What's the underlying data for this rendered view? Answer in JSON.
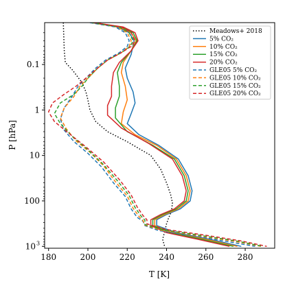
{
  "chart_data": {
    "type": "line",
    "xlabel": "T [K]",
    "ylabel": "P [hPa]",
    "xlim": [
      178,
      295
    ],
    "ylim": [
      1100,
      0.012
    ],
    "y_scale": "log",
    "y_inverted": true,
    "grid": false,
    "legend_position": "top-right",
    "x_ticks": [
      {
        "value": 180,
        "label": "180"
      },
      {
        "value": 200,
        "label": "200"
      },
      {
        "value": 220,
        "label": "220"
      },
      {
        "value": 240,
        "label": "240"
      },
      {
        "value": 260,
        "label": "260"
      },
      {
        "value": 280,
        "label": "280"
      }
    ],
    "y_ticks": [
      {
        "value": 0.1,
        "label": "0.1"
      },
      {
        "value": 1,
        "label": "1"
      },
      {
        "value": 10,
        "label": "10"
      },
      {
        "value": 100,
        "label": "100"
      },
      {
        "value": 1000,
        "label": "10",
        "sup": "3"
      }
    ],
    "series": [
      {
        "name": "Meadows+ 2018",
        "color": "#000000",
        "dash": "1.5,2.5",
        "points": [
          [
            187.5,
            0.012
          ],
          [
            188,
            0.05
          ],
          [
            188.5,
            0.09
          ],
          [
            192,
            0.13
          ],
          [
            197,
            0.25
          ],
          [
            199,
            0.4
          ],
          [
            200,
            0.6
          ],
          [
            201,
            1.0
          ],
          [
            204,
            1.8
          ],
          [
            210,
            3.0
          ],
          [
            220,
            5.0
          ],
          [
            232,
            10
          ],
          [
            237,
            20
          ],
          [
            240,
            40
          ],
          [
            242,
            70
          ],
          [
            243,
            110
          ],
          [
            242.5,
            170
          ],
          [
            241,
            240
          ],
          [
            240,
            320
          ],
          [
            239,
            480
          ],
          [
            238,
            700
          ],
          [
            239,
            1000
          ]
        ]
      },
      {
        "name": "5% CO₂",
        "color": "#1f77b4",
        "dash": "",
        "points": [
          [
            203,
            0.012
          ],
          [
            215,
            0.015
          ],
          [
            221,
            0.02
          ],
          [
            223.5,
            0.03
          ],
          [
            222,
            0.06
          ],
          [
            219,
            0.12
          ],
          [
            220,
            0.2
          ],
          [
            223,
            0.4
          ],
          [
            224,
            0.7
          ],
          [
            222,
            1.2
          ],
          [
            220,
            2.0
          ],
          [
            226,
            3.5
          ],
          [
            236,
            6.0
          ],
          [
            246,
            12
          ],
          [
            251,
            28
          ],
          [
            253,
            60
          ],
          [
            252,
            100
          ],
          [
            247,
            150
          ],
          [
            240,
            200
          ],
          [
            235,
            260
          ],
          [
            235,
            350
          ],
          [
            245,
            500
          ],
          [
            262,
            700
          ],
          [
            278,
            1000
          ]
        ]
      },
      {
        "name": "10% CO₂",
        "color": "#ff7f0e",
        "dash": "",
        "points": [
          [
            203,
            0.012
          ],
          [
            216,
            0.015
          ],
          [
            222,
            0.02
          ],
          [
            224.5,
            0.03
          ],
          [
            222,
            0.05
          ],
          [
            218,
            0.09
          ],
          [
            217,
            0.15
          ],
          [
            219,
            0.3
          ],
          [
            220,
            0.6
          ],
          [
            218,
            1.1
          ],
          [
            217,
            2.0
          ],
          [
            224,
            3.5
          ],
          [
            235,
            6.0
          ],
          [
            245,
            12
          ],
          [
            250,
            28
          ],
          [
            252,
            60
          ],
          [
            251,
            100
          ],
          [
            246,
            150
          ],
          [
            239,
            200
          ],
          [
            234,
            260
          ],
          [
            234,
            350
          ],
          [
            243,
            500
          ],
          [
            260,
            700
          ],
          [
            276,
            1000
          ]
        ]
      },
      {
        "name": "15% CO₂",
        "color": "#2ca02c",
        "dash": "",
        "points": [
          [
            203,
            0.012
          ],
          [
            217,
            0.015
          ],
          [
            223,
            0.02
          ],
          [
            225,
            0.03
          ],
          [
            222,
            0.05
          ],
          [
            217,
            0.09
          ],
          [
            215,
            0.15
          ],
          [
            216,
            0.3
          ],
          [
            216,
            0.5
          ],
          [
            214,
            0.9
          ],
          [
            214,
            1.5
          ],
          [
            220,
            3.0
          ],
          [
            233,
            6.0
          ],
          [
            244,
            12
          ],
          [
            249,
            28
          ],
          [
            251,
            60
          ],
          [
            250,
            100
          ],
          [
            245,
            150
          ],
          [
            238,
            200
          ],
          [
            233,
            260
          ],
          [
            233,
            350
          ],
          [
            242,
            500
          ],
          [
            258,
            700
          ],
          [
            274,
            1000
          ]
        ]
      },
      {
        "name": "20% CO₂",
        "color": "#d62728",
        "dash": "",
        "points": [
          [
            203,
            0.012
          ],
          [
            218,
            0.015
          ],
          [
            224,
            0.02
          ],
          [
            225.5,
            0.03
          ],
          [
            222,
            0.05
          ],
          [
            216,
            0.09
          ],
          [
            213,
            0.15
          ],
          [
            212,
            0.3
          ],
          [
            212,
            0.5
          ],
          [
            210,
            0.8
          ],
          [
            210,
            1.3
          ],
          [
            217,
            2.5
          ],
          [
            231,
            5.5
          ],
          [
            243,
            12
          ],
          [
            248,
            28
          ],
          [
            250,
            60
          ],
          [
            249,
            100
          ],
          [
            244,
            150
          ],
          [
            237,
            200
          ],
          [
            232,
            260
          ],
          [
            232,
            350
          ],
          [
            240,
            500
          ],
          [
            256,
            700
          ],
          [
            272,
            1000
          ]
        ]
      },
      {
        "name": "GLE05 5% CO₂",
        "color": "#1f77b4",
        "dash": "5,3",
        "points": [
          [
            201,
            0.012
          ],
          [
            214,
            0.015
          ],
          [
            219,
            0.02
          ],
          [
            221,
            0.03
          ],
          [
            220,
            0.04
          ],
          [
            216,
            0.055
          ],
          [
            209,
            0.08
          ],
          [
            204,
            0.12
          ],
          [
            199,
            0.2
          ],
          [
            195,
            0.3
          ],
          [
            192,
            0.5
          ],
          [
            188,
            0.9
          ],
          [
            186,
            1.6
          ],
          [
            188,
            2.8
          ],
          [
            193,
            5.0
          ],
          [
            200,
            9
          ],
          [
            207,
            18
          ],
          [
            213,
            40
          ],
          [
            219,
            80
          ],
          [
            222,
            150
          ],
          [
            225,
            230
          ],
          [
            228,
            280
          ],
          [
            229,
            350
          ],
          [
            236,
            450
          ],
          [
            255,
            600
          ],
          [
            272,
            800
          ],
          [
            285,
            1000
          ]
        ]
      },
      {
        "name": "GLE05 10% CO₂",
        "color": "#ff7f0e",
        "dash": "5,3",
        "points": [
          [
            202,
            0.012
          ],
          [
            215,
            0.015
          ],
          [
            220,
            0.02
          ],
          [
            222,
            0.03
          ],
          [
            221,
            0.04
          ],
          [
            217,
            0.055
          ],
          [
            210,
            0.08
          ],
          [
            205,
            0.12
          ],
          [
            200,
            0.2
          ],
          [
            196,
            0.3
          ],
          [
            193,
            0.5
          ],
          [
            188,
            0.9
          ],
          [
            186,
            1.5
          ],
          [
            189,
            2.6
          ],
          [
            194,
            4.8
          ],
          [
            201,
            8.5
          ],
          [
            208,
            17
          ],
          [
            214,
            38
          ],
          [
            220,
            78
          ],
          [
            223,
            145
          ],
          [
            226,
            220
          ],
          [
            228,
            270
          ],
          [
            229,
            340
          ],
          [
            237,
            440
          ],
          [
            257,
            590
          ],
          [
            275,
            780
          ],
          [
            288,
            1000
          ]
        ]
      },
      {
        "name": "GLE05 15% CO₂",
        "color": "#2ca02c",
        "dash": "5,3",
        "points": [
          [
            202,
            0.012
          ],
          [
            216,
            0.015
          ],
          [
            221,
            0.02
          ],
          [
            223,
            0.03
          ],
          [
            221.5,
            0.04
          ],
          [
            217,
            0.055
          ],
          [
            210,
            0.08
          ],
          [
            205,
            0.12
          ],
          [
            200,
            0.2
          ],
          [
            197,
            0.3
          ],
          [
            193,
            0.45
          ],
          [
            186,
            0.7
          ],
          [
            183,
            1.2
          ],
          [
            186,
            2.0
          ],
          [
            192,
            3.8
          ],
          [
            200,
            7.5
          ],
          [
            208,
            16
          ],
          [
            215,
            36
          ],
          [
            221,
            76
          ],
          [
            224,
            140
          ],
          [
            227,
            215
          ],
          [
            229,
            265
          ],
          [
            229,
            330
          ],
          [
            238,
            430
          ],
          [
            258,
            580
          ],
          [
            276,
            770
          ],
          [
            289,
            1000
          ]
        ]
      },
      {
        "name": "GLE05 20% CO₂",
        "color": "#d62728",
        "dash": "5,3",
        "points": [
          [
            203,
            0.012
          ],
          [
            217,
            0.015
          ],
          [
            222,
            0.02
          ],
          [
            224,
            0.03
          ],
          [
            222,
            0.04
          ],
          [
            217,
            0.055
          ],
          [
            210,
            0.08
          ],
          [
            205,
            0.12
          ],
          [
            199,
            0.2
          ],
          [
            194,
            0.3
          ],
          [
            188,
            0.45
          ],
          [
            182,
            0.7
          ],
          [
            180,
            1.1
          ],
          [
            183,
            1.8
          ],
          [
            190,
            3.2
          ],
          [
            199,
            6.5
          ],
          [
            208,
            14
          ],
          [
            216,
            34
          ],
          [
            222,
            74
          ],
          [
            225,
            135
          ],
          [
            228,
            210
          ],
          [
            230,
            260
          ],
          [
            230,
            320
          ],
          [
            239,
            420
          ],
          [
            260,
            570
          ],
          [
            278,
            760
          ],
          [
            291,
            1000
          ]
        ]
      }
    ]
  }
}
